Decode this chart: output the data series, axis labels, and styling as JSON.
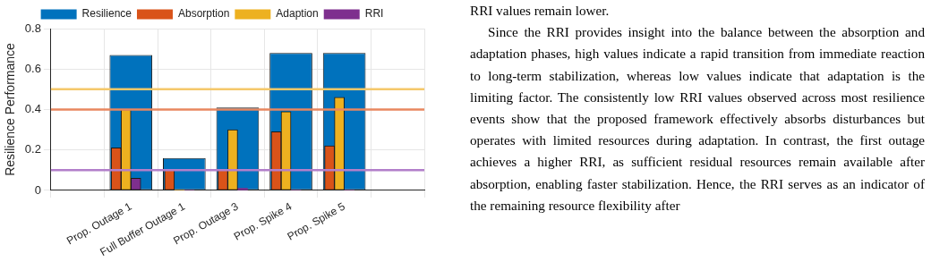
{
  "chart_data": {
    "type": "bar",
    "ylabel": "Resilience Performance",
    "categories": [
      null,
      "Prop. Outage 1",
      "Full Buffer Outage 1",
      "Prop. Outage 3",
      "Prop. Spike 4",
      "Prop. Spike 5",
      null
    ],
    "series": [
      {
        "name": "Resilience",
        "color": "#0072bd",
        "values": [
          null,
          0.67,
          0.16,
          0.41,
          0.68,
          0.68,
          null
        ]
      },
      {
        "name": "Absorption",
        "color": "#d95319",
        "values": [
          null,
          0.21,
          0.1,
          0.1,
          0.29,
          0.22,
          null
        ]
      },
      {
        "name": "Adaption",
        "color": "#edb120",
        "values": [
          null,
          0.4,
          0,
          0.3,
          0.39,
          0.46,
          null
        ]
      },
      {
        "name": "RRI",
        "color": "#7e2f8e",
        "values": [
          null,
          0.06,
          0,
          0.01,
          0,
          0,
          null
        ]
      }
    ],
    "ylim": [
      0,
      0.8
    ],
    "yticks": [
      0,
      0.2,
      0.4,
      0.6,
      0.8
    ],
    "grid": true,
    "legend": "top",
    "ref_lines": [
      {
        "axis": "y",
        "value": 0.5,
        "color": "#f5c86a"
      },
      {
        "axis": "y",
        "value": 0.4,
        "color": "#e8875f"
      },
      {
        "axis": "y",
        "value": 0.1,
        "color": "#b27fca"
      }
    ],
    "annotations": [
      "RRI values remain lower.\nSince the RRI provides insight into the balance between the absorption and adaptation phases, high values indicate a rapid transition from immediate reaction to long-term stabilization, whereas low values indicate that adaptation is the limiting factor. The consistently low RRI values observed across most resilience events show that the proposed framework effectively absorbs disturbances but operates with limited resources during adaptation. In contrast, the first outage achieves a higher RRI, as sufficient residual resources remain available after absorption, enabling faster stabilization. Hence, the RRI serves as an indicator of the remaining resource flexibility after"
    ]
  }
}
